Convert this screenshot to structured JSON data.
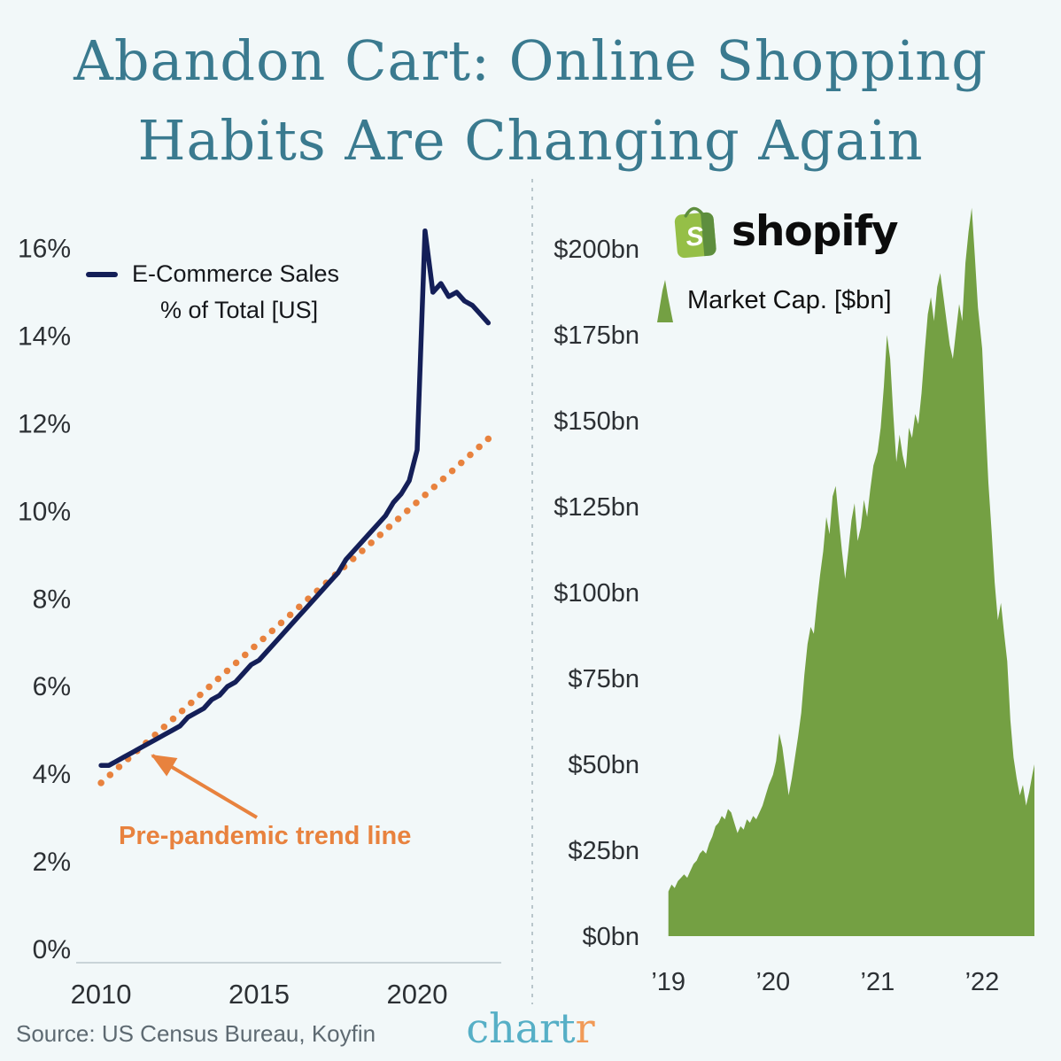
{
  "header": {
    "title_line1": "Abandon Cart: Online Shopping",
    "title_line2": "Habits Are Changing Again"
  },
  "left_chart_legend": {
    "line1": "E-Commerce Sales",
    "line2": "% of Total [US]"
  },
  "annotation": {
    "text": "Pre-pandemic trend line"
  },
  "shopify": {
    "wordmark": "shopify",
    "legend_label": "Market Cap. [$bn]"
  },
  "footer": {
    "source": "Source: US Census Bureau, Koyfin",
    "brand_main": "chart",
    "brand_accent": "r"
  },
  "colors": {
    "background": "#F2F8F9",
    "title_teal": "#3A7A8F",
    "navy_line": "#141F58",
    "trend_orange": "#E8823E",
    "shopify_area_green": "#74A043",
    "shopify_logo_green": "#95BF47",
    "shopify_logo_dark_green": "#5E8E3E",
    "brand_teal": "#56AFC6",
    "brand_orange": "#F19A57",
    "axis_text": "#2C3034",
    "source_gray": "#5E6A72"
  },
  "chart_data": [
    {
      "type": "line",
      "title": "E-Commerce Sales % of Total [US]",
      "xlabel": "",
      "ylabel": "",
      "grid": false,
      "baseline": true,
      "legend_position": "top-left",
      "xlim": [
        2009.55,
        2022.55
      ],
      "ylim": [
        0,
        16.9
      ],
      "x_ticks": [
        {
          "v": 2010,
          "label": "2010"
        },
        {
          "v": 2015,
          "label": "2015"
        },
        {
          "v": 2020,
          "label": "2020"
        }
      ],
      "y_ticks": [
        {
          "v": 0,
          "label": "0%"
        },
        {
          "v": 2,
          "label": "2%"
        },
        {
          "v": 4,
          "label": "4%"
        },
        {
          "v": 6,
          "label": "6%"
        },
        {
          "v": 8,
          "label": "8%"
        },
        {
          "v": 10,
          "label": "10%"
        },
        {
          "v": 12,
          "label": "12%"
        },
        {
          "v": 14,
          "label": "14%"
        },
        {
          "v": 16,
          "label": "16%"
        }
      ],
      "series": [
        {
          "id": "pre-pandemic-trend-line",
          "name": "Pre-pandemic trend line",
          "color": "#E8823E",
          "dash": "dotted",
          "points": [
            [
              2010.0,
              3.8
            ],
            [
              2022.4,
              11.75
            ]
          ]
        },
        {
          "id": "ecommerce-line",
          "name": "E-Commerce Sales % of Total [US]",
          "color": "#141F58",
          "points": [
            [
              2010.0,
              4.2
            ],
            [
              2010.25,
              4.2
            ],
            [
              2010.5,
              4.3
            ],
            [
              2010.75,
              4.4
            ],
            [
              2011.0,
              4.5
            ],
            [
              2011.25,
              4.6
            ],
            [
              2011.5,
              4.7
            ],
            [
              2011.75,
              4.8
            ],
            [
              2012.0,
              4.9
            ],
            [
              2012.25,
              5.0
            ],
            [
              2012.5,
              5.1
            ],
            [
              2012.75,
              5.3
            ],
            [
              2013.0,
              5.4
            ],
            [
              2013.25,
              5.5
            ],
            [
              2013.5,
              5.7
            ],
            [
              2013.75,
              5.8
            ],
            [
              2014.0,
              6.0
            ],
            [
              2014.25,
              6.1
            ],
            [
              2014.5,
              6.3
            ],
            [
              2014.75,
              6.5
            ],
            [
              2015.0,
              6.6
            ],
            [
              2015.25,
              6.8
            ],
            [
              2015.5,
              7.0
            ],
            [
              2015.75,
              7.2
            ],
            [
              2016.0,
              7.4
            ],
            [
              2016.25,
              7.6
            ],
            [
              2016.5,
              7.8
            ],
            [
              2016.75,
              8.0
            ],
            [
              2017.0,
              8.2
            ],
            [
              2017.25,
              8.4
            ],
            [
              2017.5,
              8.6
            ],
            [
              2017.75,
              8.9
            ],
            [
              2018.0,
              9.1
            ],
            [
              2018.25,
              9.3
            ],
            [
              2018.5,
              9.5
            ],
            [
              2018.75,
              9.7
            ],
            [
              2019.0,
              9.9
            ],
            [
              2019.25,
              10.2
            ],
            [
              2019.5,
              10.4
            ],
            [
              2019.75,
              10.7
            ],
            [
              2020.0,
              11.4
            ],
            [
              2020.25,
              16.4
            ],
            [
              2020.5,
              15.0
            ],
            [
              2020.75,
              15.2
            ],
            [
              2021.0,
              14.9
            ],
            [
              2021.25,
              15.0
            ],
            [
              2021.5,
              14.8
            ],
            [
              2021.75,
              14.7
            ],
            [
              2022.0,
              14.5
            ],
            [
              2022.25,
              14.3
            ]
          ]
        }
      ]
    },
    {
      "type": "area",
      "title": "Shopify Market Cap. [$bn]",
      "xlabel": "",
      "ylabel": "",
      "grid": false,
      "baseline": false,
      "legend_position": "top-left",
      "xlim": [
        2018.96,
        2022.5
      ],
      "ylim": [
        0,
        215
      ],
      "x_ticks": [
        {
          "v": 2019,
          "label": "’19"
        },
        {
          "v": 2020,
          "label": "’20"
        },
        {
          "v": 2021,
          "label": "’21"
        },
        {
          "v": 2022,
          "label": "’22"
        }
      ],
      "y_ticks": [
        {
          "v": 0,
          "label": "$0bn"
        },
        {
          "v": 25,
          "label": "$25bn"
        },
        {
          "v": 50,
          "label": "$50bn"
        },
        {
          "v": 75,
          "label": "$75bn"
        },
        {
          "v": 100,
          "label": "$100bn"
        },
        {
          "v": 125,
          "label": "$125bn"
        },
        {
          "v": 150,
          "label": "$150bn"
        },
        {
          "v": 175,
          "label": "$175bn"
        },
        {
          "v": 200,
          "label": "$200bn"
        }
      ],
      "series": [
        {
          "id": "shopify-market-cap-area",
          "name": "Shopify Market Cap. [$bn]",
          "color": "#74A043",
          "type": "area",
          "points": [
            [
              2019.0,
              13
            ],
            [
              2019.03,
              15
            ],
            [
              2019.06,
              14
            ],
            [
              2019.09,
              16
            ],
            [
              2019.12,
              17
            ],
            [
              2019.15,
              18
            ],
            [
              2019.18,
              17
            ],
            [
              2019.21,
              19
            ],
            [
              2019.24,
              21
            ],
            [
              2019.27,
              22
            ],
            [
              2019.3,
              24
            ],
            [
              2019.33,
              25
            ],
            [
              2019.36,
              24
            ],
            [
              2019.39,
              27
            ],
            [
              2019.42,
              29
            ],
            [
              2019.45,
              32
            ],
            [
              2019.48,
              33
            ],
            [
              2019.51,
              35
            ],
            [
              2019.54,
              34
            ],
            [
              2019.57,
              37
            ],
            [
              2019.6,
              36
            ],
            [
              2019.63,
              33
            ],
            [
              2019.66,
              30
            ],
            [
              2019.69,
              32
            ],
            [
              2019.72,
              31
            ],
            [
              2019.75,
              34
            ],
            [
              2019.78,
              33
            ],
            [
              2019.81,
              35
            ],
            [
              2019.84,
              34
            ],
            [
              2019.87,
              36
            ],
            [
              2019.9,
              38
            ],
            [
              2019.93,
              41
            ],
            [
              2019.96,
              44
            ],
            [
              2020.0,
              47
            ],
            [
              2020.03,
              51
            ],
            [
              2020.06,
              59
            ],
            [
              2020.09,
              55
            ],
            [
              2020.12,
              48
            ],
            [
              2020.15,
              41
            ],
            [
              2020.18,
              46
            ],
            [
              2020.21,
              52
            ],
            [
              2020.24,
              58
            ],
            [
              2020.27,
              65
            ],
            [
              2020.3,
              76
            ],
            [
              2020.33,
              85
            ],
            [
              2020.36,
              90
            ],
            [
              2020.39,
              88
            ],
            [
              2020.42,
              97
            ],
            [
              2020.45,
              105
            ],
            [
              2020.48,
              112
            ],
            [
              2020.51,
              122
            ],
            [
              2020.54,
              117
            ],
            [
              2020.57,
              128
            ],
            [
              2020.6,
              131
            ],
            [
              2020.63,
              121
            ],
            [
              2020.66,
              112
            ],
            [
              2020.69,
              104
            ],
            [
              2020.72,
              112
            ],
            [
              2020.75,
              121
            ],
            [
              2020.78,
              126
            ],
            [
              2020.81,
              115
            ],
            [
              2020.84,
              119
            ],
            [
              2020.87,
              127
            ],
            [
              2020.9,
              122
            ],
            [
              2020.93,
              130
            ],
            [
              2020.96,
              137
            ],
            [
              2021.0,
              141
            ],
            [
              2021.03,
              148
            ],
            [
              2021.06,
              160
            ],
            [
              2021.09,
              175
            ],
            [
              2021.12,
              168
            ],
            [
              2021.15,
              152
            ],
            [
              2021.18,
              138
            ],
            [
              2021.21,
              146
            ],
            [
              2021.24,
              140
            ],
            [
              2021.27,
              136
            ],
            [
              2021.3,
              148
            ],
            [
              2021.33,
              145
            ],
            [
              2021.36,
              152
            ],
            [
              2021.39,
              149
            ],
            [
              2021.42,
              158
            ],
            [
              2021.45,
              170
            ],
            [
              2021.48,
              181
            ],
            [
              2021.51,
              186
            ],
            [
              2021.54,
              179
            ],
            [
              2021.57,
              189
            ],
            [
              2021.6,
              193
            ],
            [
              2021.63,
              186
            ],
            [
              2021.66,
              179
            ],
            [
              2021.69,
              172
            ],
            [
              2021.72,
              168
            ],
            [
              2021.75,
              176
            ],
            [
              2021.78,
              184
            ],
            [
              2021.81,
              179
            ],
            [
              2021.84,
              196
            ],
            [
              2021.87,
              205
            ],
            [
              2021.9,
              212
            ],
            [
              2021.93,
              198
            ],
            [
              2021.96,
              183
            ],
            [
              2022.0,
              171
            ],
            [
              2022.03,
              151
            ],
            [
              2022.06,
              132
            ],
            [
              2022.09,
              118
            ],
            [
              2022.12,
              103
            ],
            [
              2022.15,
              92
            ],
            [
              2022.18,
              97
            ],
            [
              2022.21,
              88
            ],
            [
              2022.24,
              80
            ],
            [
              2022.27,
              63
            ],
            [
              2022.3,
              52
            ],
            [
              2022.33,
              46
            ],
            [
              2022.36,
              41
            ],
            [
              2022.39,
              44
            ],
            [
              2022.42,
              38
            ],
            [
              2022.45,
              42
            ],
            [
              2022.48,
              47
            ],
            [
              2022.5,
              50
            ]
          ]
        }
      ]
    }
  ]
}
